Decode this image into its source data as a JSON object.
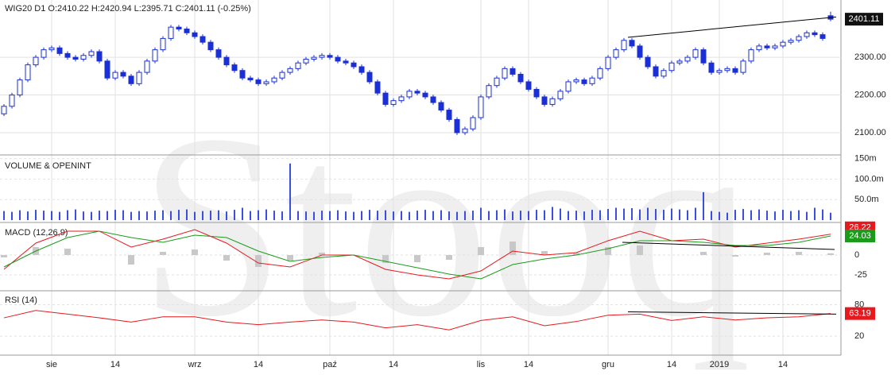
{
  "chart_data": {
    "type": "candlestick",
    "title": "WIG20  D1  O:2410.22  H:2420.94  L:2395.71  C:2401.11  (-0.25%)",
    "watermark": "Stooq",
    "up_color": "#ffffff",
    "down_color": "#1a2fd6",
    "edge_color": "#1a2fd6",
    "grid": true,
    "xlim": [
      -0.5,
      105.3
    ],
    "xticks": [
      {
        "value": 6,
        "label": "sie"
      },
      {
        "value": 14,
        "label": "14"
      },
      {
        "value": 24,
        "label": "wrz"
      },
      {
        "value": 32,
        "label": "14"
      },
      {
        "value": 41,
        "label": "paź"
      },
      {
        "value": 49,
        "label": "14"
      },
      {
        "value": 60,
        "label": "lis"
      },
      {
        "value": 66,
        "label": "14"
      },
      {
        "value": 76,
        "label": "gru"
      },
      {
        "value": 84,
        "label": "14"
      },
      {
        "value": 90,
        "label": "2019"
      },
      {
        "value": 98,
        "label": "14"
      }
    ],
    "ylim": [
      2041,
      2452
    ],
    "yticks": [
      {
        "value": 2100,
        "label": "2100.00"
      },
      {
        "value": 2200,
        "label": "2200.00"
      },
      {
        "value": 2300,
        "label": "2300.00"
      }
    ],
    "open": [
      2150,
      2170,
      2200,
      2240,
      2280,
      2300,
      2320,
      2325,
      2310,
      2300,
      2295,
      2305,
      2315,
      2290,
      2245,
      2260,
      2250,
      2230,
      2260,
      2290,
      2320,
      2350,
      2380,
      2375,
      2365,
      2355,
      2340,
      2320,
      2300,
      2280,
      2265,
      2245,
      2240,
      2230,
      2235,
      2245,
      2260,
      2270,
      2285,
      2295,
      2300,
      2305,
      2300,
      2290,
      2285,
      2275,
      2260,
      2235,
      2205,
      2175,
      2185,
      2195,
      2210,
      2205,
      2195,
      2180,
      2160,
      2135,
      2100,
      2110,
      2140,
      2195,
      2225,
      2245,
      2270,
      2255,
      2235,
      2215,
      2195,
      2175,
      2190,
      2210,
      2235,
      2240,
      2230,
      2245,
      2270,
      2300,
      2320,
      2345,
      2330,
      2300,
      2275,
      2250,
      2265,
      2285,
      2290,
      2300,
      2320,
      2285,
      2260,
      2265,
      2270,
      2260,
      2290,
      2320,
      2330,
      2325,
      2330,
      2340,
      2345,
      2355,
      2365,
      2360,
      2410.22
    ],
    "high": [
      2176,
      2206,
      2246,
      2286,
      2306,
      2326,
      2331,
      2331,
      2316,
      2306,
      2311,
      2321,
      2321,
      2296,
      2266,
      2266,
      2256,
      2266,
      2296,
      2326,
      2356,
      2386,
      2386,
      2381,
      2371,
      2361,
      2346,
      2326,
      2306,
      2286,
      2271,
      2251,
      2246,
      2241,
      2251,
      2266,
      2276,
      2291,
      2301,
      2306,
      2311,
      2311,
      2306,
      2296,
      2291,
      2281,
      2266,
      2241,
      2211,
      2191,
      2201,
      2216,
      2216,
      2211,
      2201,
      2186,
      2166,
      2141,
      2116,
      2146,
      2201,
      2231,
      2251,
      2276,
      2276,
      2261,
      2241,
      2221,
      2201,
      2196,
      2216,
      2241,
      2246,
      2246,
      2251,
      2276,
      2306,
      2326,
      2351,
      2351,
      2336,
      2306,
      2281,
      2271,
      2291,
      2296,
      2306,
      2326,
      2326,
      2291,
      2271,
      2276,
      2276,
      2296,
      2326,
      2336,
      2336,
      2336,
      2346,
      2351,
      2361,
      2371,
      2371,
      2366,
      2420.94
    ],
    "low": [
      2144,
      2164,
      2194,
      2234,
      2274,
      2294,
      2314,
      2304,
      2294,
      2289,
      2289,
      2299,
      2284,
      2239,
      2239,
      2244,
      2224,
      2224,
      2254,
      2284,
      2314,
      2344,
      2369,
      2359,
      2349,
      2334,
      2314,
      2294,
      2274,
      2259,
      2239,
      2234,
      2224,
      2224,
      2229,
      2239,
      2254,
      2264,
      2279,
      2289,
      2294,
      2294,
      2284,
      2279,
      2269,
      2254,
      2229,
      2199,
      2169,
      2169,
      2179,
      2189,
      2199,
      2189,
      2174,
      2154,
      2129,
      2094,
      2094,
      2104,
      2134,
      2189,
      2219,
      2239,
      2249,
      2229,
      2209,
      2189,
      2169,
      2169,
      2184,
      2204,
      2229,
      2224,
      2224,
      2239,
      2264,
      2294,
      2314,
      2324,
      2294,
      2269,
      2244,
      2244,
      2259,
      2279,
      2284,
      2294,
      2279,
      2254,
      2254,
      2259,
      2254,
      2254,
      2284,
      2314,
      2319,
      2319,
      2324,
      2334,
      2339,
      2349,
      2354,
      2344,
      2395.71
    ],
    "close": [
      2170,
      2200,
      2240,
      2280,
      2300,
      2320,
      2325,
      2310,
      2300,
      2295,
      2305,
      2315,
      2290,
      2245,
      2260,
      2250,
      2230,
      2260,
      2290,
      2320,
      2350,
      2380,
      2375,
      2365,
      2355,
      2340,
      2320,
      2300,
      2280,
      2265,
      2245,
      2240,
      2230,
      2235,
      2245,
      2260,
      2270,
      2285,
      2295,
      2300,
      2305,
      2300,
      2290,
      2285,
      2275,
      2260,
      2235,
      2205,
      2175,
      2185,
      2195,
      2210,
      2205,
      2195,
      2180,
      2160,
      2135,
      2100,
      2110,
      2140,
      2195,
      2225,
      2245,
      2270,
      2255,
      2235,
      2215,
      2195,
      2175,
      2190,
      2210,
      2235,
      2240,
      2230,
      2245,
      2270,
      2300,
      2320,
      2345,
      2330,
      2300,
      2275,
      2250,
      2265,
      2285,
      2290,
      2300,
      2320,
      2285,
      2260,
      2265,
      2270,
      2260,
      2290,
      2320,
      2330,
      2325,
      2330,
      2340,
      2345,
      2355,
      2365,
      2360,
      2350,
      2401.11
    ],
    "trendline": {
      "x": [
        78.5,
        104.7
      ],
      "y": [
        2353,
        2407
      ],
      "color": "#000000"
    },
    "volume": {
      "label": "VOLUME & OPENINT",
      "color": "#3a4ee0",
      "ylim": [
        0,
        155
      ],
      "yticks": [
        {
          "value": 50,
          "label": "50.0m"
        },
        {
          "value": 100,
          "label": "100.0m"
        },
        {
          "value": 150,
          "label": "150m"
        }
      ],
      "values": [
        22,
        20,
        24,
        21,
        25,
        23,
        22,
        20,
        24,
        26,
        21,
        20,
        23,
        22,
        25,
        24,
        20,
        22,
        21,
        23,
        24,
        22,
        25,
        26,
        20,
        22,
        23,
        24,
        21,
        25,
        30,
        22,
        24,
        26,
        23,
        21,
        138,
        22,
        21,
        20,
        23,
        22,
        24,
        21,
        20,
        22,
        25,
        23,
        24,
        21,
        22,
        20,
        23,
        25,
        22,
        24,
        21,
        20,
        22,
        23,
        30,
        22,
        24,
        26,
        21,
        23,
        22,
        25,
        24,
        32,
        28,
        22,
        23,
        21,
        25,
        24,
        27,
        30,
        28,
        29,
        26,
        30,
        27,
        25,
        28,
        26,
        24,
        30,
        68,
        22,
        20,
        18,
        25,
        27,
        24,
        26,
        23,
        21,
        25,
        22,
        24,
        20,
        30,
        26,
        18
      ]
    },
    "macd": {
      "label": "MACD (12,26,9)",
      "ylim": [
        -44,
        39
      ],
      "yticks": [
        0,
        -25
      ],
      "x": [
        0,
        4,
        8,
        12,
        16,
        20,
        24,
        28,
        32,
        36,
        40,
        44,
        48,
        52,
        56,
        60,
        64,
        68,
        72,
        76,
        80,
        84,
        88,
        92,
        96,
        100,
        104
      ],
      "series": [
        {
          "name": "MACD",
          "color": "#e8191e",
          "values": [
            -18,
            15,
            30,
            30,
            10,
            20,
            32,
            15,
            -10,
            -15,
            0,
            0,
            -18,
            -25,
            -30,
            -20,
            5,
            0,
            3,
            18,
            30,
            18,
            20,
            10,
            15,
            20,
            26.22
          ]
        },
        {
          "name": "Signal",
          "color": "#1a9c1a",
          "values": [
            -15,
            5,
            22,
            30,
            22,
            16,
            25,
            22,
            5,
            -8,
            -3,
            0,
            -8,
            -16,
            -24,
            -30,
            -12,
            -5,
            0,
            8,
            18,
            18,
            16,
            12,
            12,
            16,
            24.03
          ]
        }
      ],
      "histogram": {
        "color": "#c8c8c8",
        "values": [
          -3,
          10,
          8,
          0,
          -12,
          4,
          7,
          -7,
          -15,
          -7,
          3,
          0,
          -10,
          -9,
          -6,
          10,
          17,
          5,
          3,
          10,
          12,
          0,
          4,
          -2,
          3,
          4,
          2.19
        ]
      },
      "trendline": {
        "x": [
          77.8,
          104.5
        ],
        "y": [
          16,
          7
        ],
        "color": "#000000"
      }
    },
    "rsi": {
      "label": "RSI (14)",
      "color": "#e8191e",
      "ylim": [
        -13,
        105
      ],
      "yticks": [
        80,
        20
      ],
      "x": [
        0,
        4,
        8,
        12,
        16,
        20,
        24,
        28,
        32,
        36,
        40,
        44,
        48,
        52,
        56,
        60,
        64,
        68,
        72,
        76,
        80,
        84,
        88,
        92,
        96,
        100,
        104
      ],
      "values": [
        55,
        69,
        62,
        55,
        47,
        57,
        57,
        47,
        42,
        47,
        51,
        47,
        36,
        42,
        32,
        50,
        57,
        40,
        48,
        60,
        62,
        50,
        57,
        51,
        55,
        57,
        63.19
      ],
      "trendline": {
        "x": [
          78.5,
          104.7
        ],
        "y": [
          66.5,
          62
        ],
        "color": "#000000"
      }
    }
  }
}
